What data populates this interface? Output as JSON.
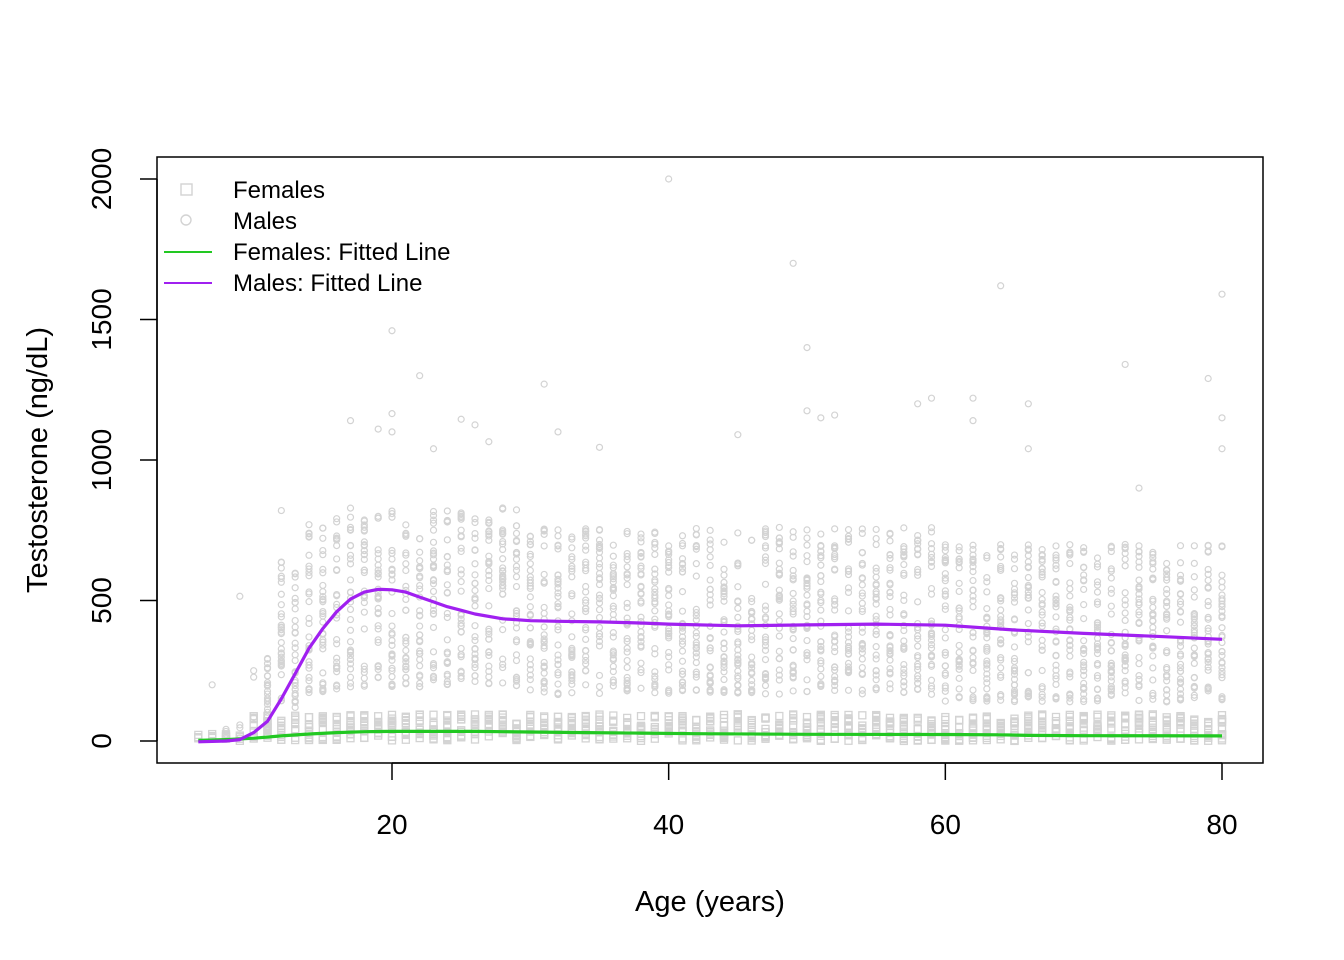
{
  "chart_data": {
    "type": "scatter",
    "title": "",
    "xlabel": "Age (years)",
    "ylabel": "Testosterone (ng/dL)",
    "xlim": [
      6,
      80
    ],
    "ylim": [
      0,
      2000
    ],
    "x_ticks": [
      20,
      40,
      60,
      80
    ],
    "y_ticks": [
      0,
      500,
      1000,
      1500,
      2000
    ],
    "legend_position": "top-left",
    "grid": false,
    "colors": {
      "points": "#d3d3d3",
      "females_line": "#22c822",
      "males_line": "#a020f0"
    },
    "legend": [
      {
        "label": "Females",
        "kind": "square-marker",
        "color": "#d3d3d3"
      },
      {
        "label": "Males",
        "kind": "circle-marker",
        "color": "#d3d3d3"
      },
      {
        "label": "Females: Fitted Line",
        "kind": "line",
        "color": "#22c822"
      },
      {
        "label": "Males: Fitted Line",
        "kind": "line",
        "color": "#a020f0"
      }
    ],
    "series": [
      {
        "name": "Females: Fitted Line",
        "x": [
          6,
          8,
          10,
          12,
          14,
          16,
          18,
          20,
          22,
          24,
          26,
          28,
          30,
          34,
          38,
          42,
          50,
          60,
          64,
          66,
          70,
          80
        ],
        "y": [
          2,
          5,
          10,
          18,
          25,
          30,
          33,
          34,
          34,
          34,
          34,
          33,
          32,
          30,
          28,
          26,
          24,
          23,
          22,
          20,
          19,
          18
        ]
      },
      {
        "name": "Males: Fitted Line",
        "x": [
          6,
          8,
          9,
          10,
          11,
          12,
          13,
          14,
          15,
          16,
          17,
          18,
          19,
          20,
          21,
          22,
          23,
          24,
          25,
          26,
          28,
          30,
          32,
          35,
          38,
          40,
          45,
          50,
          55,
          60,
          65,
          70,
          75,
          80
        ],
        "y": [
          -3,
          0,
          5,
          30,
          70,
          150,
          240,
          330,
          400,
          460,
          505,
          530,
          540,
          538,
          530,
          512,
          495,
          478,
          465,
          452,
          435,
          428,
          426,
          424,
          420,
          416,
          410,
          413,
          416,
          412,
          395,
          383,
          373,
          362
        ]
      }
    ],
    "outliers": [
      {
        "x": 7,
        "y": 200
      },
      {
        "x": 9,
        "y": 515
      },
      {
        "x": 12,
        "y": 820
      },
      {
        "x": 17,
        "y": 1140
      },
      {
        "x": 19,
        "y": 1110
      },
      {
        "x": 20,
        "y": 1460
      },
      {
        "x": 20,
        "y": 1165
      },
      {
        "x": 20,
        "y": 1100
      },
      {
        "x": 22,
        "y": 1300
      },
      {
        "x": 23,
        "y": 1040
      },
      {
        "x": 25,
        "y": 1145
      },
      {
        "x": 26,
        "y": 1125
      },
      {
        "x": 27,
        "y": 1065
      },
      {
        "x": 31,
        "y": 1270
      },
      {
        "x": 32,
        "y": 1100
      },
      {
        "x": 35,
        "y": 1045
      },
      {
        "x": 40,
        "y": 2000
      },
      {
        "x": 45,
        "y": 1090
      },
      {
        "x": 49,
        "y": 1700
      },
      {
        "x": 50,
        "y": 1400
      },
      {
        "x": 50,
        "y": 1175
      },
      {
        "x": 51,
        "y": 1150
      },
      {
        "x": 52,
        "y": 1160
      },
      {
        "x": 58,
        "y": 1200
      },
      {
        "x": 59,
        "y": 1220
      },
      {
        "x": 62,
        "y": 1220
      },
      {
        "x": 62,
        "y": 1140
      },
      {
        "x": 64,
        "y": 1620
      },
      {
        "x": 66,
        "y": 1200
      },
      {
        "x": 66,
        "y": 1040
      },
      {
        "x": 73,
        "y": 1340
      },
      {
        "x": 74,
        "y": 900
      },
      {
        "x": 79,
        "y": 1290
      },
      {
        "x": 80,
        "y": 1590
      },
      {
        "x": 80,
        "y": 1150
      },
      {
        "x": 80,
        "y": 1040
      }
    ]
  }
}
